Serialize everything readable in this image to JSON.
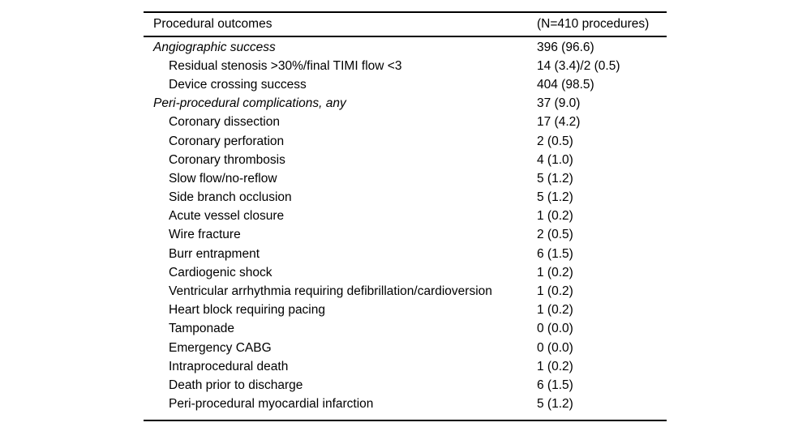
{
  "table": {
    "header": {
      "label": "Procedural outcomes",
      "value": "(N=410 procedures)"
    },
    "rows": [
      {
        "style": "section",
        "label": "Angiographic success",
        "value": "396 (96.6)"
      },
      {
        "style": "sub",
        "label": "Residual stenosis >30%/final TIMI flow <3",
        "value": "14 (3.4)/2 (0.5)"
      },
      {
        "style": "sub",
        "label": "Device crossing success",
        "value": "404 (98.5)"
      },
      {
        "style": "section",
        "label": "Peri-procedural complications, any",
        "value": "37 (9.0)"
      },
      {
        "style": "sub",
        "label": "Coronary dissection",
        "value": "17 (4.2)"
      },
      {
        "style": "sub",
        "label": "Coronary perforation",
        "value": "2 (0.5)"
      },
      {
        "style": "sub",
        "label": "Coronary thrombosis",
        "value": "4 (1.0)"
      },
      {
        "style": "sub",
        "label": "Slow flow/no-reflow",
        "value": "5 (1.2)"
      },
      {
        "style": "sub",
        "label": "Side branch occlusion",
        "value": "5 (1.2)"
      },
      {
        "style": "sub",
        "label": "Acute vessel closure",
        "value": "1 (0.2)"
      },
      {
        "style": "sub",
        "label": "Wire fracture",
        "value": "2 (0.5)"
      },
      {
        "style": "sub",
        "label": "Burr entrapment",
        "value": "6 (1.5)"
      },
      {
        "style": "sub",
        "label": "Cardiogenic shock",
        "value": "1 (0.2)"
      },
      {
        "style": "sub",
        "label": "Ventricular arrhythmia requiring defibrillation/cardioversion",
        "value": "1 (0.2)"
      },
      {
        "style": "sub",
        "label": "Heart block requiring pacing",
        "value": "1 (0.2)"
      },
      {
        "style": "sub",
        "label": "Tamponade",
        "value": "0 (0.0)"
      },
      {
        "style": "sub",
        "label": "Emergency CABG",
        "value": "0 (0.0)"
      },
      {
        "style": "sub",
        "label": "Intraprocedural death",
        "value": "1 (0.2)"
      },
      {
        "style": "sub",
        "label": "Death prior to discharge",
        "value": "6 (1.5)"
      },
      {
        "style": "sub",
        "label": "Peri-procedural myocardial infarction",
        "value": "5 (1.2)"
      }
    ]
  }
}
